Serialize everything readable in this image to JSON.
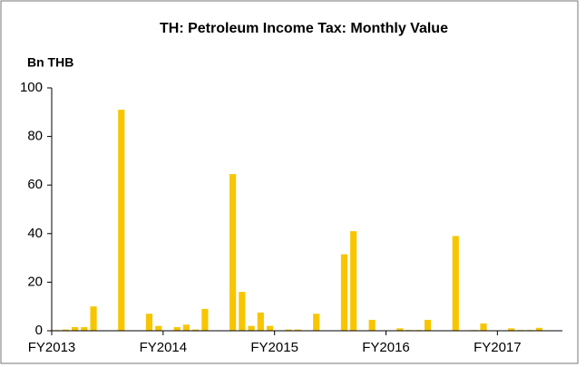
{
  "chart_data": {
    "type": "bar",
    "title": "TH: Petroleum Income Tax: Monthly Value",
    "ylabel": "Bn THB",
    "x": [
      0,
      1,
      2,
      3,
      4,
      5,
      6,
      7,
      8,
      9,
      10,
      11,
      12,
      13,
      14,
      15,
      16,
      17,
      18,
      19,
      20,
      21,
      22,
      23,
      24,
      25,
      26,
      27,
      28,
      29,
      30,
      31,
      32,
      33,
      34,
      35,
      36,
      37,
      38,
      39,
      40,
      41,
      42,
      43,
      44,
      45,
      46,
      47,
      48,
      49,
      50,
      51,
      52
    ],
    "values": [
      0.3,
      0.5,
      1.5,
      1.5,
      10,
      0,
      0,
      91,
      0,
      0,
      7,
      2,
      0,
      1.5,
      2.5,
      0.5,
      9,
      0,
      0,
      64.5,
      16,
      2,
      7.5,
      2,
      0,
      0.5,
      0.5,
      0,
      7,
      0,
      0,
      31.5,
      41,
      0,
      4.5,
      0,
      0,
      1,
      0.3,
      0.3,
      4.5,
      0,
      0,
      39,
      0,
      0.3,
      3,
      0,
      0,
      1,
      0.3,
      0.3,
      1.2
    ],
    "color": "#f7c600",
    "xlim": [
      0,
      55
    ],
    "xticks": [
      {
        "value": 0,
        "label": "FY2013"
      },
      {
        "value": 12,
        "label": "FY2014"
      },
      {
        "value": 24,
        "label": "FY2015"
      },
      {
        "value": 36,
        "label": "FY2016"
      },
      {
        "value": 48,
        "label": "FY2017"
      }
    ],
    "ylim": [
      0,
      100
    ],
    "yticks": [
      0,
      20,
      40,
      60,
      80,
      100
    ],
    "grid": false
  }
}
